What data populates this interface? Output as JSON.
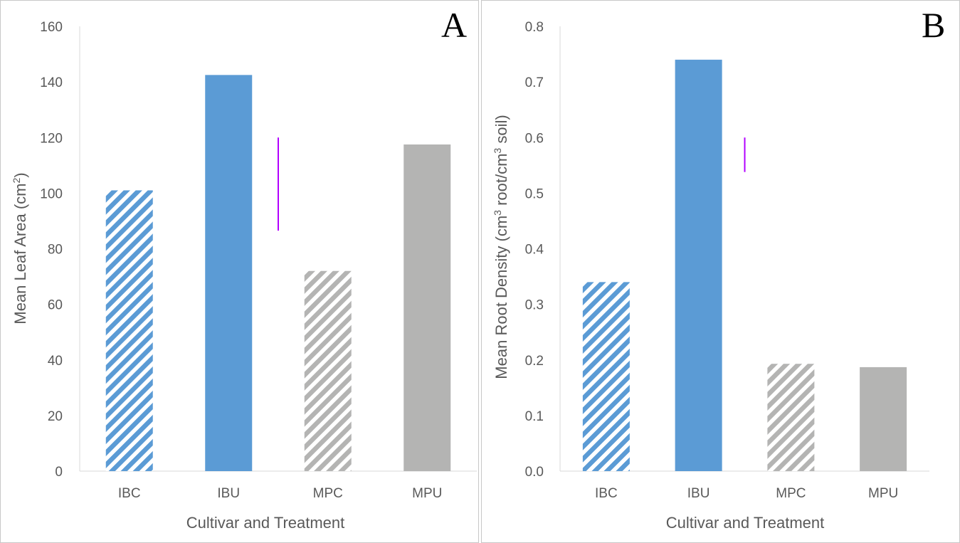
{
  "colors": {
    "blue": "#5b9bd5",
    "gray": "#b4b4b3",
    "errorbar": "#b200ff",
    "axis": "#d9d9d9",
    "text": "#595959",
    "border": "#c8c8c8"
  },
  "chart_data": [
    {
      "panel_label": "A",
      "type": "bar",
      "categories": [
        "IBC",
        "IBU",
        "MPC",
        "MPU"
      ],
      "values": [
        101,
        142.5,
        72,
        117.5
      ],
      "fills": [
        "hatched-blue",
        "solid-blue",
        "hatched-gray",
        "solid-gray"
      ],
      "xlabel": "Cultivar and Treatment",
      "ylabel": "Mean Leaf Area (cm²)",
      "ylabel_parts": {
        "main": "Mean Leaf Area (cm",
        "sup": "2",
        "end": ")"
      },
      "ylim": [
        0,
        160
      ],
      "yticks": [
        "0",
        "20",
        "40",
        "60",
        "80",
        "100",
        "120",
        "140",
        "160"
      ],
      "grid": false,
      "legend": "none",
      "annotation": {
        "type": "error-bar",
        "x_between": [
          "IBU",
          "MPC"
        ],
        "y_range": [
          86.5,
          120
        ]
      }
    },
    {
      "panel_label": "B",
      "type": "bar",
      "categories": [
        "IBC",
        "IBU",
        "MPC",
        "MPU"
      ],
      "values": [
        0.34,
        0.74,
        0.193,
        0.187
      ],
      "fills": [
        "hatched-blue",
        "solid-blue",
        "hatched-gray",
        "solid-gray"
      ],
      "xlabel": "Cultivar and Treatment",
      "ylabel": "Mean Root Density (cm³ root/cm³ soil)",
      "ylabel_parts": {
        "main": "Mean Root Density (cm",
        "sup": "3",
        "mid": " root/cm",
        "sup2": "3",
        "end": " soil)"
      },
      "ylim": [
        0,
        0.8
      ],
      "yticks": [
        "0.0",
        "0.1",
        "0.2",
        "0.3",
        "0.4",
        "0.5",
        "0.6",
        "0.7",
        "0.8"
      ],
      "grid": false,
      "legend": "none",
      "annotation": {
        "type": "error-bar",
        "x_between": [
          "IBU",
          "MPC"
        ],
        "y_range": [
          0.538,
          0.6
        ]
      }
    }
  ]
}
